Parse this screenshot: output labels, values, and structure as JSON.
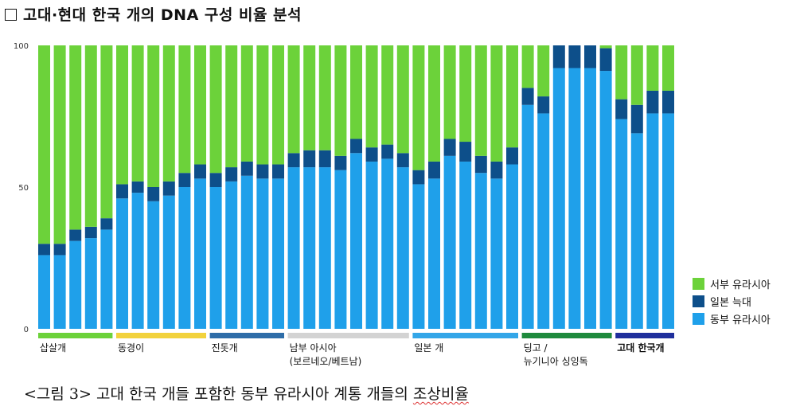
{
  "title": "고대·현대 한국 개의 DNA 구성 비율 분석",
  "caption": {
    "main": "<그림 3> 고대 한국 개들 포함한 동부 유라시아 계통 개들의 ",
    "underlined": "조상비율"
  },
  "chart_data": {
    "type": "bar",
    "stacked": true,
    "ylim": [
      0,
      100
    ],
    "yticks": [
      "0",
      "50",
      "100"
    ],
    "legend_position": "right",
    "series": [
      {
        "name": "동부 유라시아",
        "color": "#1fa0ea",
        "values": [
          26,
          26,
          31,
          32,
          35,
          46,
          48,
          45,
          47,
          50,
          53,
          50,
          52,
          54,
          53,
          53,
          57,
          57,
          57,
          56,
          62,
          59,
          60,
          57,
          51,
          53,
          61,
          59,
          55,
          53,
          58,
          79,
          76,
          92,
          92,
          92,
          91,
          74,
          69,
          76,
          76
        ]
      },
      {
        "name": "일본 늑대",
        "color": "#0d4f8a",
        "values": [
          4,
          4,
          4,
          4,
          4,
          5,
          4,
          5,
          5,
          5,
          5,
          5,
          5,
          5,
          5,
          5,
          5,
          6,
          6,
          5,
          5,
          5,
          5,
          5,
          5,
          6,
          6,
          7,
          6,
          6,
          6,
          6,
          6,
          8,
          8,
          8,
          8,
          7,
          10,
          8,
          8
        ]
      },
      {
        "name": "서부 유라시아",
        "color": "#6cd23a",
        "values": [
          70,
          70,
          65,
          64,
          61,
          49,
          48,
          50,
          48,
          45,
          42,
          45,
          43,
          41,
          42,
          42,
          38,
          37,
          37,
          39,
          33,
          36,
          35,
          38,
          44,
          41,
          33,
          34,
          39,
          41,
          36,
          15,
          18,
          0,
          0,
          0,
          1,
          19,
          21,
          16,
          16
        ]
      }
    ],
    "legend_order": [
      2,
      1,
      0
    ],
    "groups": [
      {
        "label": "삽살개",
        "start": 0,
        "end": 4,
        "color": "#6cd23a",
        "bold": false
      },
      {
        "label": "동경이",
        "start": 5,
        "end": 10,
        "color": "#f2d23c",
        "bold": false
      },
      {
        "label": "진돗개",
        "start": 11,
        "end": 15,
        "color": "#2e6da8",
        "bold": false
      },
      {
        "label": "남부 아시아",
        "label2": "(보르네오/베트남)",
        "start": 16,
        "end": 23,
        "color": "#d3d3d3",
        "bold": false
      },
      {
        "label": "일본 개",
        "start": 24,
        "end": 30,
        "color": "#33a6e8",
        "bold": false
      },
      {
        "label": "딩고 /",
        "label2": "뉴기니아 싱잉독",
        "start": 31,
        "end": 36,
        "color": "#1e8a3c",
        "bold": false
      },
      {
        "label": "고대 한국개",
        "start": 37,
        "end": 40,
        "color": "#1f2f9c",
        "bold": true
      }
    ]
  }
}
